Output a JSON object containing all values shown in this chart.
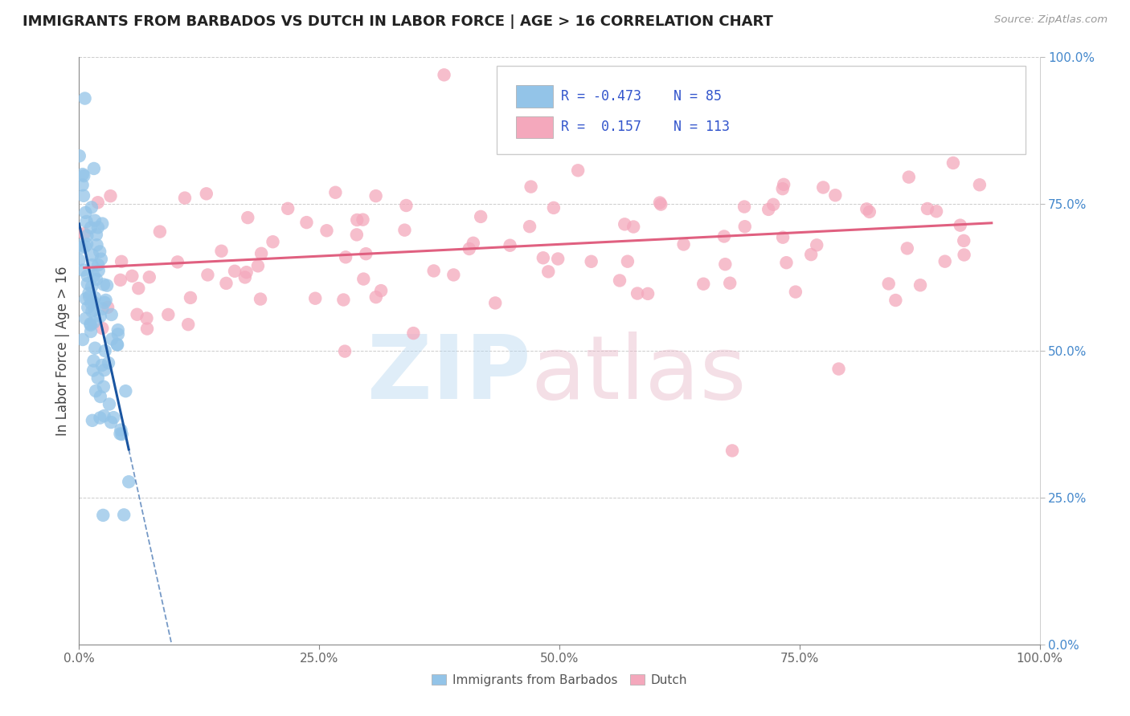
{
  "title": "IMMIGRANTS FROM BARBADOS VS DUTCH IN LABOR FORCE | AGE > 16 CORRELATION CHART",
  "source": "Source: ZipAtlas.com",
  "ylabel": "In Labor Force | Age > 16",
  "xlim": [
    0.0,
    1.0
  ],
  "ylim": [
    0.0,
    1.0
  ],
  "x_ticks": [
    0.0,
    0.25,
    0.5,
    0.75,
    1.0
  ],
  "y_ticks": [
    0.0,
    0.25,
    0.5,
    0.75,
    1.0
  ],
  "x_tick_labels": [
    "0.0%",
    "25.0%",
    "50.0%",
    "75.0%",
    "100.0%"
  ],
  "y_tick_labels": [
    "0.0%",
    "25.0%",
    "50.0%",
    "75.0%",
    "100.0%"
  ],
  "barbados_color": "#93c4e8",
  "dutch_color": "#f4a8bc",
  "barbados_R": -0.473,
  "barbados_N": 85,
  "dutch_R": 0.157,
  "dutch_N": 113,
  "barbados_line_color": "#1a55a0",
  "dutch_line_color": "#e06080",
  "legend_text_color": "#3355cc",
  "title_color": "#222222",
  "grid_color": "#cccccc",
  "tick_color_right": "#4488cc",
  "tick_color_bottom": "#666666",
  "background_color": "#ffffff",
  "watermark_zip_color": "#b8d8f0",
  "watermark_atlas_color": "#e8b8c8"
}
